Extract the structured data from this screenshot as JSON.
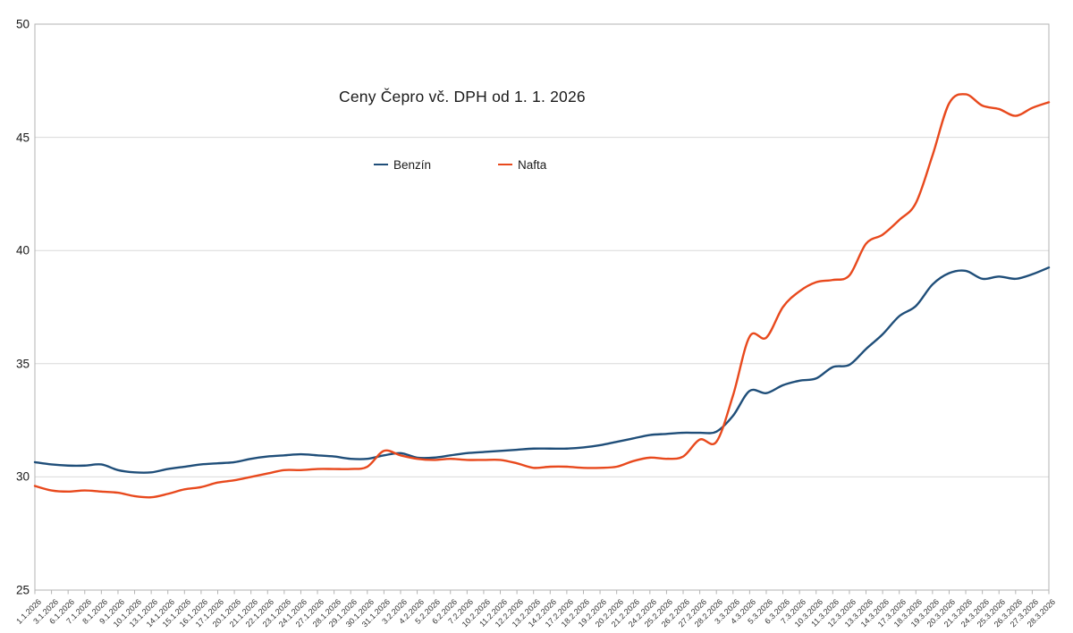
{
  "chart_data": {
    "type": "line",
    "title": "Ceny Čepro vč. DPH od 1. 1. 2026",
    "smooth": true,
    "grid": true,
    "legend_position": "top-center",
    "background": "#ffffff",
    "grid_color": "#d9d9d9",
    "border_color": "#b3b3b3",
    "ylim": [
      25,
      50
    ],
    "y_ticks": [
      25,
      30,
      35,
      40,
      45,
      50
    ],
    "categories": [
      "1.1.2026",
      "3.1.2026",
      "6.1.2026",
      "7.1.2026",
      "8.1.2026",
      "9.1.2026",
      "10.1.2026",
      "13.1.2026",
      "14.1.2026",
      "15.1.2026",
      "16.1.2026",
      "17.1.2026",
      "20.1.2026",
      "21.1.2026",
      "22.1.2026",
      "23.1.2026",
      "24.1.2026",
      "27.1.2026",
      "28.1.2026",
      "29.1.2026",
      "30.1.2026",
      "31.1.2026",
      "3.2.2026",
      "4.2.2026",
      "5.2.2026",
      "6.2.2026",
      "7.2.2026",
      "10.2.2026",
      "11.2.2026",
      "12.2.2026",
      "13.2.2026",
      "14.2.2026",
      "17.2.2026",
      "18.2.2026",
      "19.2.2026",
      "20.2.2026",
      "21.2.2026",
      "24.2.2026",
      "25.2.2026",
      "26.2.2026",
      "27.2.2026",
      "28.2.2026",
      "3.3.2026",
      "4.3.2026",
      "5.3.2026",
      "6.3.2026",
      "7.3.2026",
      "10.3.2026",
      "11.3.2026",
      "12.3.2026",
      "13.3.2026",
      "14.3.2026",
      "17.3.2026",
      "18.3.2026",
      "19.3.2026",
      "20.3.2026",
      "21.3.2026",
      "24.3.2026",
      "25.3.2026",
      "26.3.2026",
      "27.3.2026",
      "28.3.2026"
    ],
    "series": [
      {
        "name": "Benzín",
        "color": "#1f4e79",
        "values": [
          30.65,
          30.55,
          30.5,
          30.5,
          30.55,
          30.3,
          30.2,
          30.2,
          30.35,
          30.45,
          30.55,
          30.6,
          30.65,
          30.8,
          30.9,
          30.95,
          31.0,
          30.95,
          30.9,
          30.8,
          30.8,
          30.95,
          31.05,
          30.85,
          30.85,
          30.95,
          31.05,
          31.1,
          31.15,
          31.2,
          31.25,
          31.25,
          31.25,
          31.3,
          31.4,
          31.55,
          31.7,
          31.85,
          31.9,
          31.95,
          31.95,
          32.0,
          32.7,
          33.8,
          33.7,
          34.05,
          34.25,
          34.35,
          34.85,
          34.95,
          35.65,
          36.3,
          37.1,
          37.55,
          38.5,
          39.0,
          39.1,
          38.75,
          38.85,
          38.75,
          38.95,
          39.25
        ]
      },
      {
        "name": "Nafta",
        "color": "#e8491d",
        "values": [
          29.6,
          29.4,
          29.35,
          29.4,
          29.35,
          29.3,
          29.15,
          29.1,
          29.25,
          29.45,
          29.55,
          29.75,
          29.85,
          30.0,
          30.15,
          30.3,
          30.3,
          30.35,
          30.35,
          30.35,
          30.45,
          31.15,
          30.95,
          30.8,
          30.75,
          30.8,
          30.75,
          30.75,
          30.75,
          30.6,
          30.4,
          30.45,
          30.45,
          30.4,
          30.4,
          30.45,
          30.7,
          30.85,
          30.8,
          30.9,
          31.65,
          31.55,
          33.6,
          36.2,
          36.15,
          37.5,
          38.2,
          38.6,
          38.7,
          38.9,
          40.3,
          40.7,
          41.35,
          42.1,
          44.2,
          46.5,
          46.9,
          46.4,
          46.25,
          45.95,
          46.3,
          46.55
        ]
      }
    ]
  }
}
